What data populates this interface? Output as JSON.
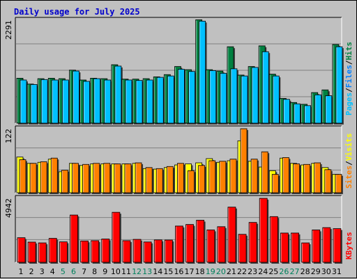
{
  "chart_data": {
    "type": "bar",
    "title": "Daily usage for July 2025",
    "x": [
      "1",
      "2",
      "3",
      "4",
      "5",
      "6",
      "7",
      "8",
      "9",
      "10",
      "11",
      "12",
      "13",
      "14",
      "15",
      "16",
      "17",
      "18",
      "19",
      "20",
      "21",
      "22",
      "23",
      "24",
      "25",
      "26",
      "27",
      "28",
      "29",
      "30",
      "31"
    ],
    "weekend_days": [
      "5",
      "6",
      "12",
      "13",
      "19",
      "20",
      "26",
      "27"
    ],
    "panels": [
      {
        "id": "top",
        "max_label": "2291",
        "ylim": [
          0,
          2291
        ],
        "series": [
          {
            "name": "Hits",
            "color": "#008040",
            "values": [
              1000,
              870,
              990,
              1000,
              990,
              1180,
              960,
              1000,
              990,
              1300,
              980,
              980,
              990,
              1030,
              1080,
              1260,
              1190,
              2300,
              1190,
              1160,
              1700,
              1070,
              1260,
              1720,
              1090,
              550,
              460,
              420,
              680,
              740,
              1750
            ]
          },
          {
            "name": "Files",
            "color": "#0080ff",
            "values": [
              0,
              0,
              0,
              0,
              0,
              0,
              0,
              0,
              0,
              0,
              0,
              0,
              0,
              0,
              0,
              0,
              0,
              0,
              0,
              0,
              0,
              0,
              0,
              0,
              0,
              0,
              0,
              0,
              0,
              0,
              0
            ]
          },
          {
            "name": "Pages",
            "color": "#00c0ff",
            "values": [
              960,
              860,
              970,
              960,
              960,
              1160,
              930,
              990,
              960,
              1270,
              960,
              950,
              960,
              1020,
              1050,
              1200,
              1150,
              2270,
              1170,
              1110,
              1210,
              1050,
              1240,
              1590,
              1050,
              530,
              430,
              390,
              630,
              610,
              1700
            ]
          }
        ],
        "legend": [
          "Pages",
          "/",
          "Files",
          "/",
          "Hits"
        ]
      },
      {
        "id": "mid",
        "max_label": "122",
        "ylim": [
          0,
          122
        ],
        "series": [
          {
            "name": "Visits",
            "color": "#ffff00",
            "values": [
              68,
              56,
              58,
              64,
              40,
              56,
              52,
              55,
              55,
              55,
              55,
              56,
              46,
              45,
              48,
              53,
              55,
              57,
              65,
              58,
              61,
              99,
              60,
              49,
              42,
              66,
              56,
              53,
              56,
              48,
              35
            ]
          },
          {
            "name": "Sites",
            "color": "#ff8000",
            "values": [
              63,
              56,
              59,
              66,
              43,
              56,
              54,
              56,
              56,
              55,
              55,
              57,
              48,
              46,
              50,
              56,
              42,
              52,
              61,
              60,
              64,
              122,
              64,
              78,
              35,
              67,
              55,
              54,
              57,
              44,
              35
            ]
          }
        ],
        "legend": [
          "Sites",
          "/",
          "Visits"
        ]
      },
      {
        "id": "bot",
        "max_label": "4942",
        "ylim": [
          0,
          4942
        ],
        "series": [
          {
            "name": "KBytes",
            "color": "#ff0000",
            "values": [
              1900,
              1560,
              1500,
              1850,
              1580,
              3650,
              1650,
              1670,
              1800,
              3860,
              1670,
              1770,
              1570,
              1730,
              1720,
              2800,
              2920,
              3250,
              2500,
              2750,
              4260,
              2160,
              3080,
              4940,
              3530,
              2260,
              2260,
              1500,
              2500,
              2680,
              2600
            ]
          }
        ],
        "legend": [
          "KBytes"
        ]
      }
    ],
    "xlabel": "",
    "ylabel": "",
    "grid": true
  },
  "colors": {
    "background": "#c0c0c0",
    "plot_background": "#c0c0c0",
    "gridline": "#808080",
    "axis_dark": "#000000",
    "axis_light": "#ffffff",
    "title": "#0000cc",
    "weekday_label": "#000000",
    "weekend_label": "#00805c"
  }
}
